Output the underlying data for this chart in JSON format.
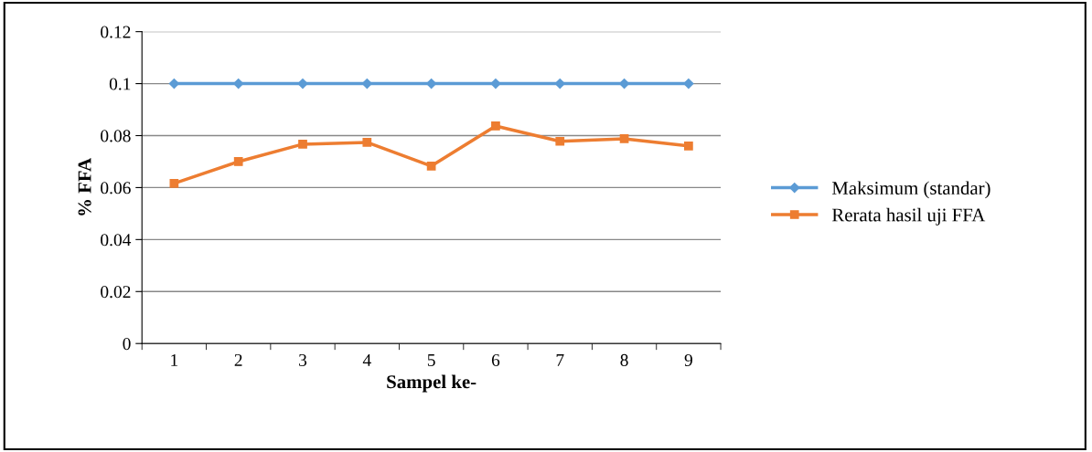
{
  "chart_data": {
    "type": "line",
    "xlabel": "Sampel ke-",
    "ylabel": "% FFA",
    "categories": [
      "1",
      "2",
      "3",
      "4",
      "5",
      "6",
      "7",
      "8",
      "9"
    ],
    "series": [
      {
        "name": "Maksimum (standar)",
        "color": "#5b9bd5",
        "marker": "diamond",
        "values": [
          0.1,
          0.1,
          0.1,
          0.1,
          0.1,
          0.1,
          0.1,
          0.1,
          0.1
        ]
      },
      {
        "name": "Rerata hasil uji FFA",
        "color": "#ed7d31",
        "marker": "square",
        "values": [
          0.0616,
          0.07,
          0.0767,
          0.0774,
          0.0683,
          0.0837,
          0.0778,
          0.0788,
          0.076
        ]
      }
    ],
    "ylim": [
      0,
      0.12
    ],
    "yticks": [
      0,
      0.02,
      0.04,
      0.06,
      0.08,
      0.1,
      0.12
    ],
    "grid": "y",
    "legend": "right",
    "line_style": "solid"
  }
}
